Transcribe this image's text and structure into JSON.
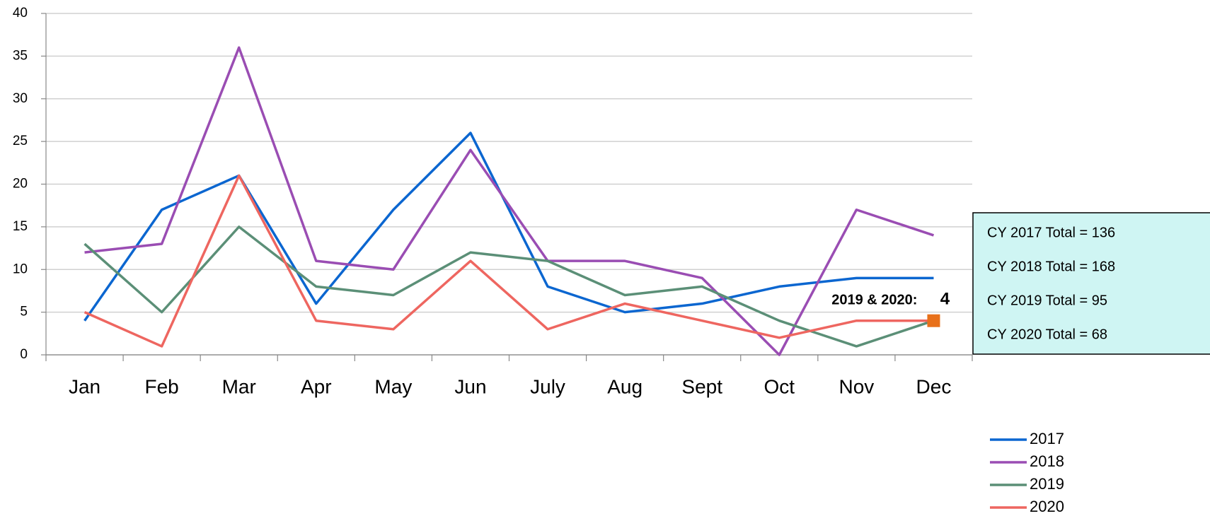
{
  "chart_data": {
    "type": "line",
    "categories": [
      "Jan",
      "Feb",
      "Mar",
      "Apr",
      "May",
      "Jun",
      "July",
      "Aug",
      "Sept",
      "Oct",
      "Nov",
      "Dec"
    ],
    "series": [
      {
        "name": "2017",
        "color": "#0b66d0",
        "values": [
          4,
          17,
          21,
          6,
          17,
          26,
          8,
          5,
          6,
          8,
          9,
          9
        ]
      },
      {
        "name": "2018",
        "color": "#9a4db3",
        "values": [
          12,
          13,
          36,
          11,
          10,
          24,
          11,
          11,
          9,
          0,
          17,
          14
        ]
      },
      {
        "name": "2019",
        "color": "#5b8f77",
        "values": [
          13,
          5,
          15,
          8,
          7,
          12,
          11,
          7,
          8,
          4,
          1,
          4
        ]
      },
      {
        "name": "2020",
        "color": "#ee6660",
        "values": [
          5,
          1,
          21,
          4,
          3,
          11,
          3,
          6,
          4,
          2,
          4,
          4
        ]
      }
    ],
    "ylim": [
      0,
      40
    ],
    "yticks": [
      0,
      5,
      10,
      15,
      20,
      25,
      30,
      35,
      40
    ],
    "grid": true,
    "annotation": {
      "text": "2019 & 2020:",
      "value": 4,
      "color": "#e8701a"
    },
    "totals": [
      "CY 2017 Total = 136",
      "CY 2018 Total = 168",
      "CY 2019 Total = 95",
      "CY 2020 Total = 68"
    ],
    "legend": "bottom-right"
  }
}
